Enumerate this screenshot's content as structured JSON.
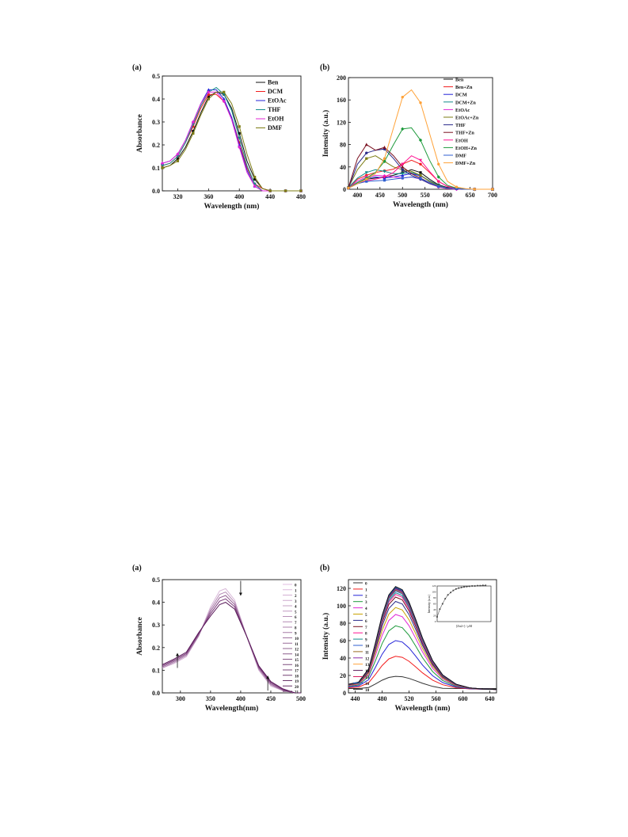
{
  "colors": {
    "black": "#111111",
    "red": "#f21d1d",
    "blue": "#2323d8",
    "teal": "#138c8c",
    "magenta": "#e027d6",
    "olive": "#7d7d14",
    "navy": "#2a2a8a",
    "maroon": "#7a1020",
    "pink": "#ff1493",
    "green": "#1e9a3c",
    "steelblue": "#2f5fd0",
    "orange": "#ffa238",
    "purple": "#7a3a7a",
    "gray": "#9a9a9a"
  },
  "chart_data": [
    {
      "id": "top_a",
      "type": "line",
      "panel_label": "(a)",
      "xlabel": "Wavelength (nm)",
      "ylabel": "Absorbance",
      "xlim": [
        300,
        480
      ],
      "ylim": [
        0,
        0.5
      ],
      "xticks": [
        320,
        360,
        400,
        440,
        480
      ],
      "yticks": [
        0.0,
        0.1,
        0.2,
        0.3,
        0.4,
        0.5
      ],
      "legend_position": "top-right",
      "x": [
        300,
        310,
        320,
        330,
        340,
        350,
        360,
        370,
        380,
        390,
        400,
        410,
        420,
        430,
        440,
        450,
        460,
        470,
        480
      ],
      "series": [
        {
          "name": "Ben",
          "color": "#111111",
          "values": [
            0.1,
            0.11,
            0.14,
            0.19,
            0.26,
            0.34,
            0.41,
            0.43,
            0.42,
            0.36,
            0.25,
            0.13,
            0.05,
            0.01,
            0.0,
            0.0,
            0.0,
            0.0,
            0.0
          ]
        },
        {
          "name": "DCM",
          "color": "#f21d1d",
          "values": [
            0.11,
            0.12,
            0.15,
            0.21,
            0.28,
            0.36,
            0.42,
            0.42,
            0.39,
            0.32,
            0.21,
            0.1,
            0.03,
            0.01,
            0.0,
            0.0,
            0.0,
            0.0,
            0.0
          ]
        },
        {
          "name": "EtOAc",
          "color": "#2323d8",
          "values": [
            0.12,
            0.13,
            0.16,
            0.22,
            0.3,
            0.38,
            0.44,
            0.44,
            0.4,
            0.32,
            0.2,
            0.09,
            0.02,
            0.0,
            0.0,
            0.0,
            0.0,
            0.0,
            0.0
          ]
        },
        {
          "name": "THF",
          "color": "#138c8c",
          "values": [
            0.11,
            0.12,
            0.15,
            0.21,
            0.29,
            0.37,
            0.43,
            0.45,
            0.42,
            0.35,
            0.23,
            0.11,
            0.03,
            0.0,
            0.0,
            0.0,
            0.0,
            0.0,
            0.0
          ]
        },
        {
          "name": "EtOH",
          "color": "#e027d6",
          "values": [
            0.12,
            0.13,
            0.16,
            0.22,
            0.3,
            0.38,
            0.43,
            0.43,
            0.39,
            0.31,
            0.19,
            0.08,
            0.02,
            0.0,
            0.0,
            0.0,
            0.0,
            0.0,
            0.0
          ]
        },
        {
          "name": "DMF",
          "color": "#7d7d14",
          "values": [
            0.1,
            0.11,
            0.13,
            0.18,
            0.25,
            0.33,
            0.4,
            0.43,
            0.43,
            0.38,
            0.28,
            0.16,
            0.06,
            0.01,
            0.0,
            0.0,
            0.0,
            0.0,
            0.0
          ]
        }
      ]
    },
    {
      "id": "top_b",
      "type": "line",
      "panel_label": "(b)",
      "xlabel": "Wavelength (nm)",
      "ylabel": "Intensity (a.u.)",
      "xlim": [
        380,
        700
      ],
      "ylim": [
        0,
        200
      ],
      "xticks": [
        400,
        450,
        500,
        550,
        600,
        650,
        700
      ],
      "yticks": [
        0,
        40,
        80,
        120,
        160,
        200
      ],
      "legend_position": "top-right",
      "x": [
        380,
        400,
        420,
        440,
        460,
        480,
        500,
        520,
        540,
        560,
        580,
        600,
        620,
        640,
        660,
        680,
        700
      ],
      "series": [
        {
          "name": "Ben",
          "color": "#111111",
          "values": [
            2,
            10,
            18,
            20,
            22,
            25,
            30,
            35,
            30,
            18,
            8,
            3,
            1,
            0,
            0,
            0,
            0
          ]
        },
        {
          "name": "Ben+Zn",
          "color": "#f21d1d",
          "values": [
            2,
            18,
            25,
            30,
            33,
            36,
            45,
            52,
            45,
            30,
            14,
            5,
            2,
            0,
            0,
            0,
            0
          ]
        },
        {
          "name": "DCM",
          "color": "#2323d8",
          "values": [
            2,
            12,
            20,
            22,
            20,
            22,
            25,
            28,
            24,
            15,
            7,
            2,
            1,
            0,
            0,
            0,
            0
          ]
        },
        {
          "name": "DCM+Zn",
          "color": "#138c8c",
          "values": [
            3,
            20,
            30,
            35,
            32,
            28,
            28,
            30,
            25,
            15,
            7,
            2,
            1,
            0,
            0,
            0,
            0
          ]
        },
        {
          "name": "EtOAc",
          "color": "#e027d6",
          "values": [
            2,
            15,
            22,
            25,
            24,
            22,
            20,
            22,
            18,
            10,
            4,
            1,
            0,
            0,
            0,
            0,
            0
          ]
        },
        {
          "name": "EtOAc+Zn",
          "color": "#7d7d14",
          "values": [
            3,
            35,
            55,
            60,
            50,
            40,
            35,
            32,
            25,
            14,
            6,
            2,
            1,
            0,
            0,
            0,
            0
          ]
        },
        {
          "name": "THF",
          "color": "#2a2a8a",
          "values": [
            2,
            45,
            65,
            70,
            72,
            55,
            35,
            25,
            18,
            10,
            5,
            2,
            1,
            0,
            0,
            0,
            0
          ]
        },
        {
          "name": "THF+Zn",
          "color": "#7a1020",
          "values": [
            3,
            55,
            80,
            70,
            75,
            60,
            40,
            28,
            20,
            12,
            5,
            2,
            1,
            0,
            0,
            0,
            0
          ]
        },
        {
          "name": "EtOH",
          "color": "#ff1493",
          "values": [
            2,
            10,
            15,
            18,
            22,
            30,
            45,
            60,
            52,
            32,
            14,
            5,
            2,
            0,
            0,
            0,
            0
          ]
        },
        {
          "name": "EtOH+Zn",
          "color": "#1e9a3c",
          "values": [
            2,
            12,
            20,
            30,
            50,
            80,
            108,
            110,
            88,
            52,
            22,
            7,
            2,
            0,
            0,
            0,
            0
          ]
        },
        {
          "name": "DMF",
          "color": "#2f5fd0",
          "values": [
            2,
            10,
            14,
            15,
            16,
            18,
            20,
            22,
            19,
            12,
            5,
            2,
            1,
            0,
            0,
            0,
            0
          ]
        },
        {
          "name": "DMF+Zn",
          "color": "#ffa238",
          "values": [
            2,
            10,
            18,
            28,
            55,
            110,
            165,
            178,
            155,
            100,
            45,
            14,
            4,
            1,
            0,
            0,
            0
          ]
        }
      ]
    },
    {
      "id": "bottom_a",
      "type": "line",
      "panel_label": "(a)",
      "xlabel": "Wavelength(nm)",
      "ylabel": "Absorbance",
      "xlim": [
        270,
        500
      ],
      "ylim": [
        0,
        0.5
      ],
      "xticks": [
        300,
        350,
        400,
        450,
        500
      ],
      "yticks": [
        0.0,
        0.1,
        0.2,
        0.3,
        0.4,
        0.5
      ],
      "legend_position": "top-right",
      "legend_entries": [
        "0",
        "1",
        "2",
        "3",
        "4",
        "5",
        "6",
        "7",
        "8",
        "9",
        "10",
        "11",
        "12",
        "14",
        "15",
        "16",
        "17",
        "18",
        "19",
        "20",
        "21"
      ],
      "annotations": [
        "arrow up at 295 nm",
        "arrow down at 400 nm",
        "arrow up at 445 nm"
      ],
      "x": [
        270,
        290,
        310,
        330,
        350,
        365,
        375,
        390,
        410,
        430,
        450,
        470,
        490,
        500
      ],
      "series": [
        {
          "name": "0",
          "color": "#d8b8d8",
          "values": [
            0.11,
            0.13,
            0.16,
            0.25,
            0.38,
            0.45,
            0.46,
            0.41,
            0.25,
            0.1,
            0.03,
            0.01,
            0.0,
            0.0
          ]
        },
        {
          "name": "5",
          "color": "#b48ab4",
          "values": [
            0.11,
            0.135,
            0.165,
            0.25,
            0.37,
            0.435,
            0.445,
            0.4,
            0.25,
            0.105,
            0.035,
            0.01,
            0.0,
            0.0
          ]
        },
        {
          "name": "10",
          "color": "#946094",
          "values": [
            0.115,
            0.14,
            0.17,
            0.255,
            0.36,
            0.42,
            0.43,
            0.39,
            0.25,
            0.11,
            0.04,
            0.012,
            0.0,
            0.0
          ]
        },
        {
          "name": "15",
          "color": "#7a3a7a",
          "values": [
            0.12,
            0.145,
            0.175,
            0.26,
            0.35,
            0.405,
            0.415,
            0.38,
            0.25,
            0.115,
            0.045,
            0.015,
            0.0,
            0.0
          ]
        },
        {
          "name": "21",
          "color": "#5a1a5a",
          "values": [
            0.125,
            0.15,
            0.18,
            0.265,
            0.34,
            0.39,
            0.4,
            0.37,
            0.25,
            0.12,
            0.05,
            0.018,
            0.0,
            0.0
          ]
        }
      ]
    },
    {
      "id": "bottom_b",
      "type": "line",
      "panel_label": "(b)",
      "xlabel": "Wavelength (nm)",
      "ylabel": "Intensity (a.u.)",
      "xlim": [
        430,
        650
      ],
      "ylim": [
        0,
        130
      ],
      "xticks": [
        440,
        480,
        520,
        560,
        600,
        640
      ],
      "yticks": [
        0,
        20,
        40,
        60,
        80,
        100,
        120
      ],
      "legend_position": "top-left",
      "legend_entries": [
        "0",
        "1",
        "2",
        "3",
        "4",
        "5",
        "6",
        "7",
        "8",
        "9",
        "10",
        "11",
        "12",
        "13",
        "14",
        "15",
        "16",
        "18"
      ],
      "x": [
        430,
        445,
        460,
        470,
        480,
        490,
        500,
        510,
        520,
        530,
        540,
        555,
        570,
        590,
        610,
        630,
        650
      ],
      "peaks": [
        16,
        42,
        60,
        77,
        90,
        98,
        105,
        110,
        113,
        115,
        117,
        118,
        119,
        120,
        120,
        121,
        121,
        122
      ],
      "shape": [
        0.05,
        0.07,
        0.2,
        0.45,
        0.72,
        0.92,
        1.0,
        0.97,
        0.85,
        0.68,
        0.5,
        0.28,
        0.14,
        0.05,
        0.015,
        0.004,
        0.0
      ],
      "series_colors": [
        "#333333",
        "#f21d1d",
        "#2323d8",
        "#1e9a3c",
        "#e027d6",
        "#c9a200",
        "#2a2a8a",
        "#7a1020",
        "#ff1493",
        "#138c8c",
        "#2f5fd0",
        "#9a6a20",
        "#8a2aa8",
        "#ffa238",
        "#5a1a5a",
        "#d81b60",
        "#1565c0",
        "#111111"
      ],
      "inset": {
        "xlabel": "[Zn2+] / μM",
        "ylabel": "Intensity (a.u.)",
        "xlim": [
          0,
          40
        ],
        "ylim": [
          0,
          120
        ],
        "yticks": [
          0,
          20,
          40,
          60,
          80,
          100,
          120
        ],
        "x": [
          0,
          2,
          4,
          6,
          8,
          10,
          12,
          14,
          16,
          18,
          20,
          22,
          24,
          26,
          28,
          30,
          32,
          34,
          36
        ],
        "values": [
          16,
          42,
          60,
          77,
          90,
          98,
          105,
          110,
          113,
          115,
          117,
          118,
          119,
          120,
          120,
          121,
          121,
          122,
          122
        ]
      }
    }
  ]
}
